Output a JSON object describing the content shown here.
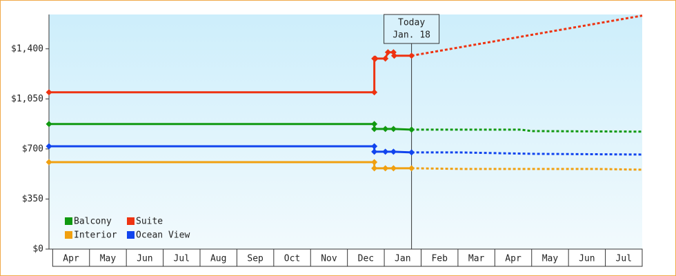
{
  "chart_data": {
    "type": "line",
    "xlim": [
      -0.1,
      16
    ],
    "ylim": [
      0,
      1640
    ],
    "yticks": [
      {
        "value": 0,
        "label": "$0"
      },
      {
        "value": 350,
        "label": "$350"
      },
      {
        "value": 700,
        "label": "$700"
      },
      {
        "value": 1050,
        "label": "$1,050"
      },
      {
        "value": 1400,
        "label": "$1,400"
      }
    ],
    "xticks": [
      {
        "value": 0.5,
        "label": "Apr"
      },
      {
        "value": 1.5,
        "label": "May"
      },
      {
        "value": 2.5,
        "label": "Jun"
      },
      {
        "value": 3.5,
        "label": "Jul"
      },
      {
        "value": 4.5,
        "label": "Aug"
      },
      {
        "value": 5.5,
        "label": "Sep"
      },
      {
        "value": 6.5,
        "label": "Oct"
      },
      {
        "value": 7.5,
        "label": "Nov"
      },
      {
        "value": 8.5,
        "label": "Dec"
      },
      {
        "value": 9.5,
        "label": "Jan"
      },
      {
        "value": 10.5,
        "label": "Feb"
      },
      {
        "value": 11.5,
        "label": "Mar"
      },
      {
        "value": 12.5,
        "label": "Apr"
      },
      {
        "value": 13.5,
        "label": "May"
      },
      {
        "value": 14.5,
        "label": "Jun"
      },
      {
        "value": 15.5,
        "label": "Jul"
      }
    ],
    "today": {
      "x": 9.74,
      "label": [
        "Today",
        "Jan. 18"
      ]
    },
    "legend": "lower left",
    "series": [
      {
        "name": "Balcony",
        "color": "#119911",
        "x": [
          -0.1,
          8.73,
          8.73,
          9.03,
          9.25,
          9.74
        ],
        "values": [
          874,
          874,
          840,
          840,
          840,
          835
        ],
        "forecast_x": [
          9.74,
          11,
          12.7,
          13,
          16
        ],
        "forecast_values": [
          835,
          835,
          835,
          825,
          821
        ]
      },
      {
        "name": "Suite",
        "color": "#ee3311",
        "x": [
          -0.1,
          8.73,
          8.73,
          8.76,
          9.03,
          9.1,
          9.25,
          9.27,
          9.74
        ],
        "values": [
          1096,
          1096,
          1332,
          1332,
          1332,
          1376,
          1376,
          1352,
          1352
        ],
        "forecast_x": [
          9.74,
          16
        ],
        "forecast_values": [
          1352,
          1632
        ]
      },
      {
        "name": "Interior",
        "color": "#f0a010",
        "x": [
          -0.1,
          8.73,
          8.73,
          9.03,
          9.25,
          9.74
        ],
        "values": [
          608,
          608,
          565,
          565,
          565,
          565
        ],
        "forecast_x": [
          9.74,
          11.2,
          14.8,
          16
        ],
        "forecast_values": [
          565,
          560,
          560,
          555
        ]
      },
      {
        "name": "Ocean View",
        "color": "#1144ee",
        "x": [
          -0.1,
          8.73,
          8.73,
          9.03,
          9.25,
          9.74
        ],
        "values": [
          719,
          719,
          681,
          681,
          681,
          676
        ],
        "forecast_x": [
          9.74,
          11,
          13,
          16
        ],
        "forecast_values": [
          676,
          676,
          666,
          661
        ]
      }
    ]
  }
}
